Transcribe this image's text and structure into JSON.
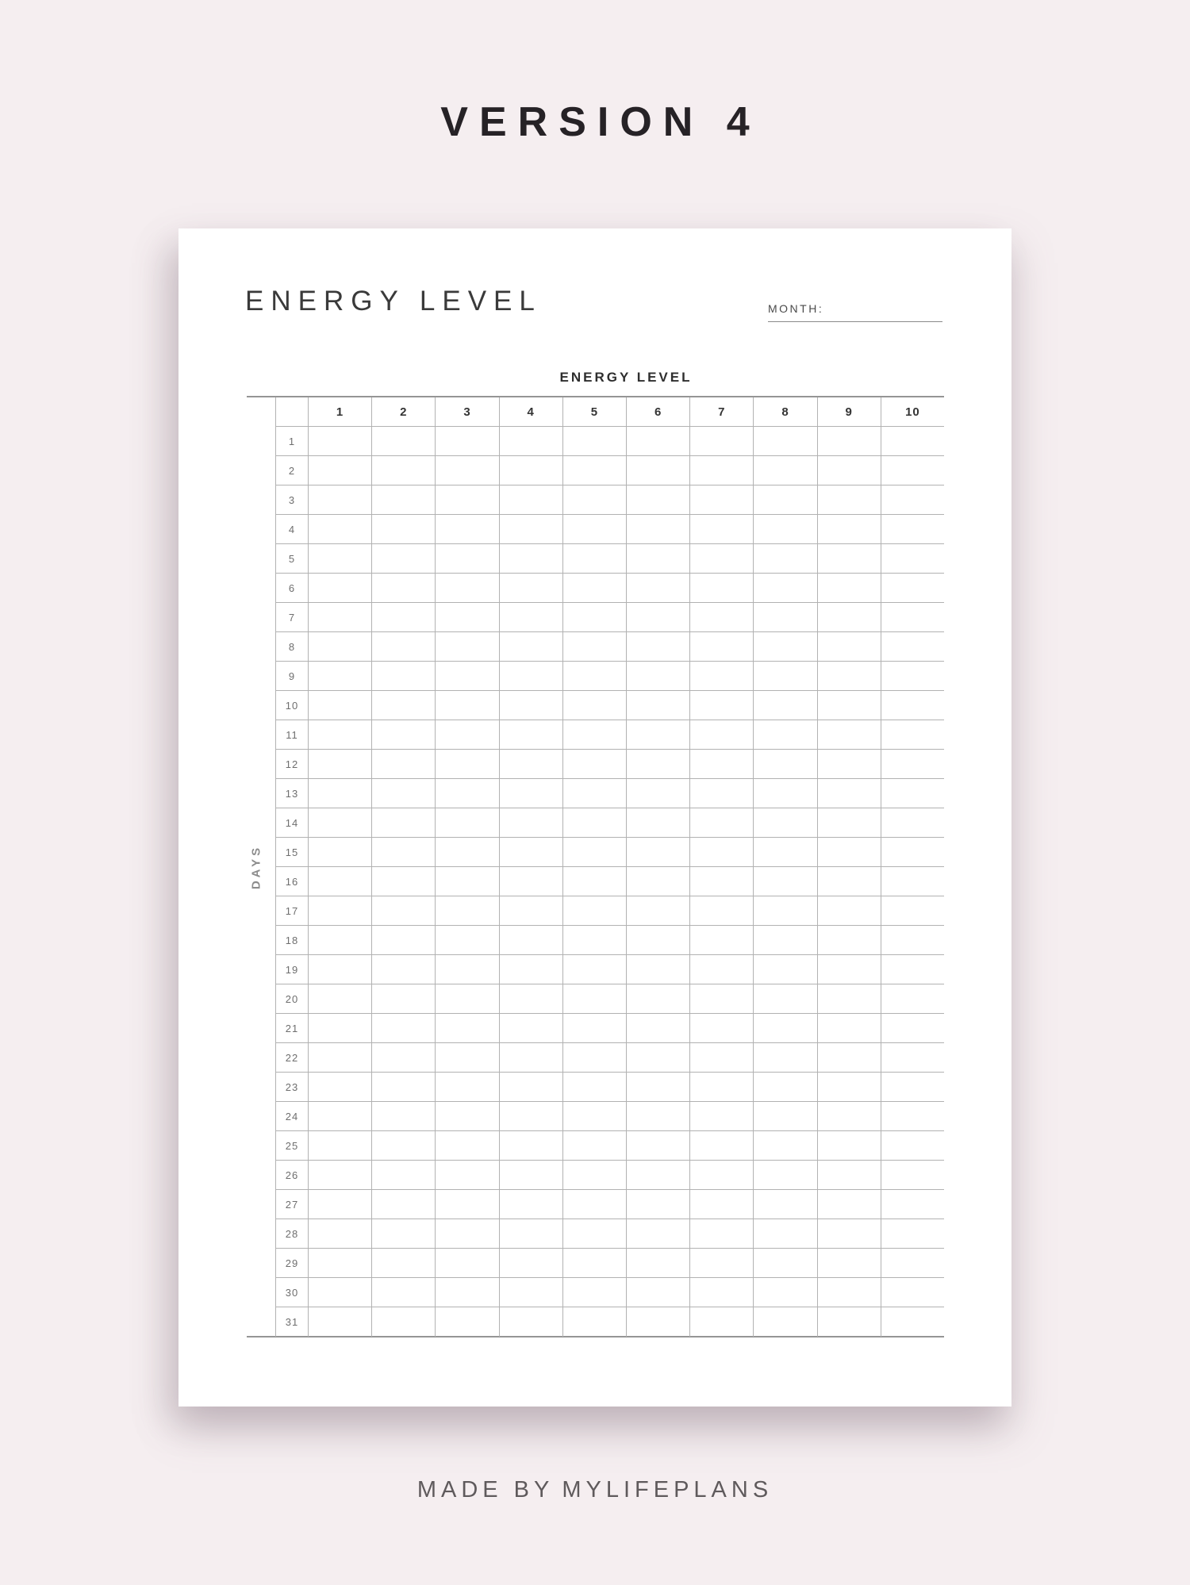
{
  "header": {
    "version_label": "VERSION 4"
  },
  "sheet": {
    "title": "ENERGY LEVEL",
    "month_label": "MONTH:",
    "table": {
      "title": "ENERGY LEVEL",
      "days_axis_label": "DAYS",
      "level_headers": [
        "1",
        "2",
        "3",
        "4",
        "5",
        "6",
        "7",
        "8",
        "9",
        "10"
      ],
      "day_rows": [
        "1",
        "2",
        "3",
        "4",
        "5",
        "6",
        "7",
        "8",
        "9",
        "10",
        "11",
        "12",
        "13",
        "14",
        "15",
        "16",
        "17",
        "18",
        "19",
        "20",
        "21",
        "22",
        "23",
        "24",
        "25",
        "26",
        "27",
        "28",
        "29",
        "30",
        "31"
      ]
    }
  },
  "footer": {
    "made_by": "MADE BY",
    "brand": "MYLIFEPLANS"
  },
  "colors": {
    "background": "#f5eef0",
    "paper": "#ffffff",
    "grid_line": "#b2b2b2",
    "axis_line": "#959595",
    "title_text": "#262226",
    "heading_text": "#3a3a3a",
    "header_number_text": "#343434",
    "day_number_text": "#6e6e6e",
    "days_label_text": "#8c8c8c"
  }
}
